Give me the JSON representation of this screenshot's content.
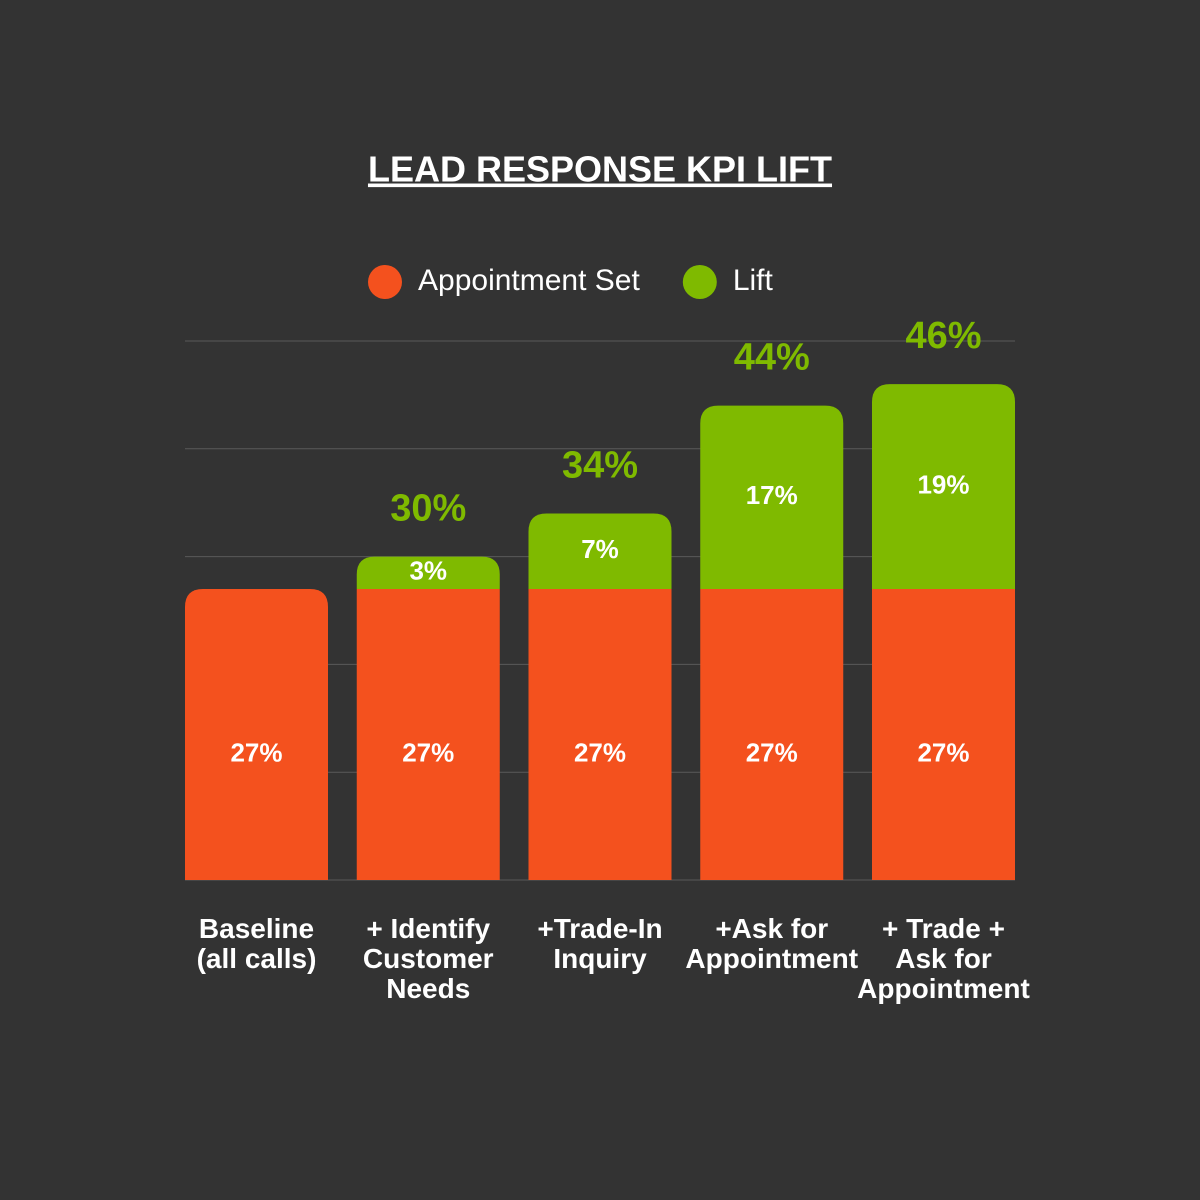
{
  "chart_data": {
    "type": "stacked-bar",
    "title": "LEAD RESPONSE KPI LIFT",
    "categories": [
      "Baseline\n(all calls)",
      "+ Identify\nCustomer\nNeeds",
      "+Trade-In\nInquiry",
      "+Ask for\nAppointment",
      "+ Trade +\nAsk for\nAppointment"
    ],
    "series": [
      {
        "name": "Appointment Set",
        "color": "#f4511e",
        "values": [
          27,
          27,
          27,
          27,
          27
        ],
        "value_labels": [
          "27%",
          "27%",
          "27%",
          "27%",
          "27%"
        ]
      },
      {
        "name": "Lift",
        "color": "#7fba00",
        "values": [
          null,
          3,
          7,
          17,
          19
        ],
        "value_labels": [
          null,
          "3%",
          "7%",
          "17%",
          "19%"
        ]
      }
    ],
    "totals": [
      null,
      30,
      34,
      44,
      46
    ],
    "total_labels": [
      null,
      "30%",
      "34%",
      "44%",
      "46%"
    ],
    "ylim": [
      0,
      50
    ],
    "yticks": [
      0,
      10,
      20,
      30,
      40,
      50
    ],
    "grid": true
  }
}
